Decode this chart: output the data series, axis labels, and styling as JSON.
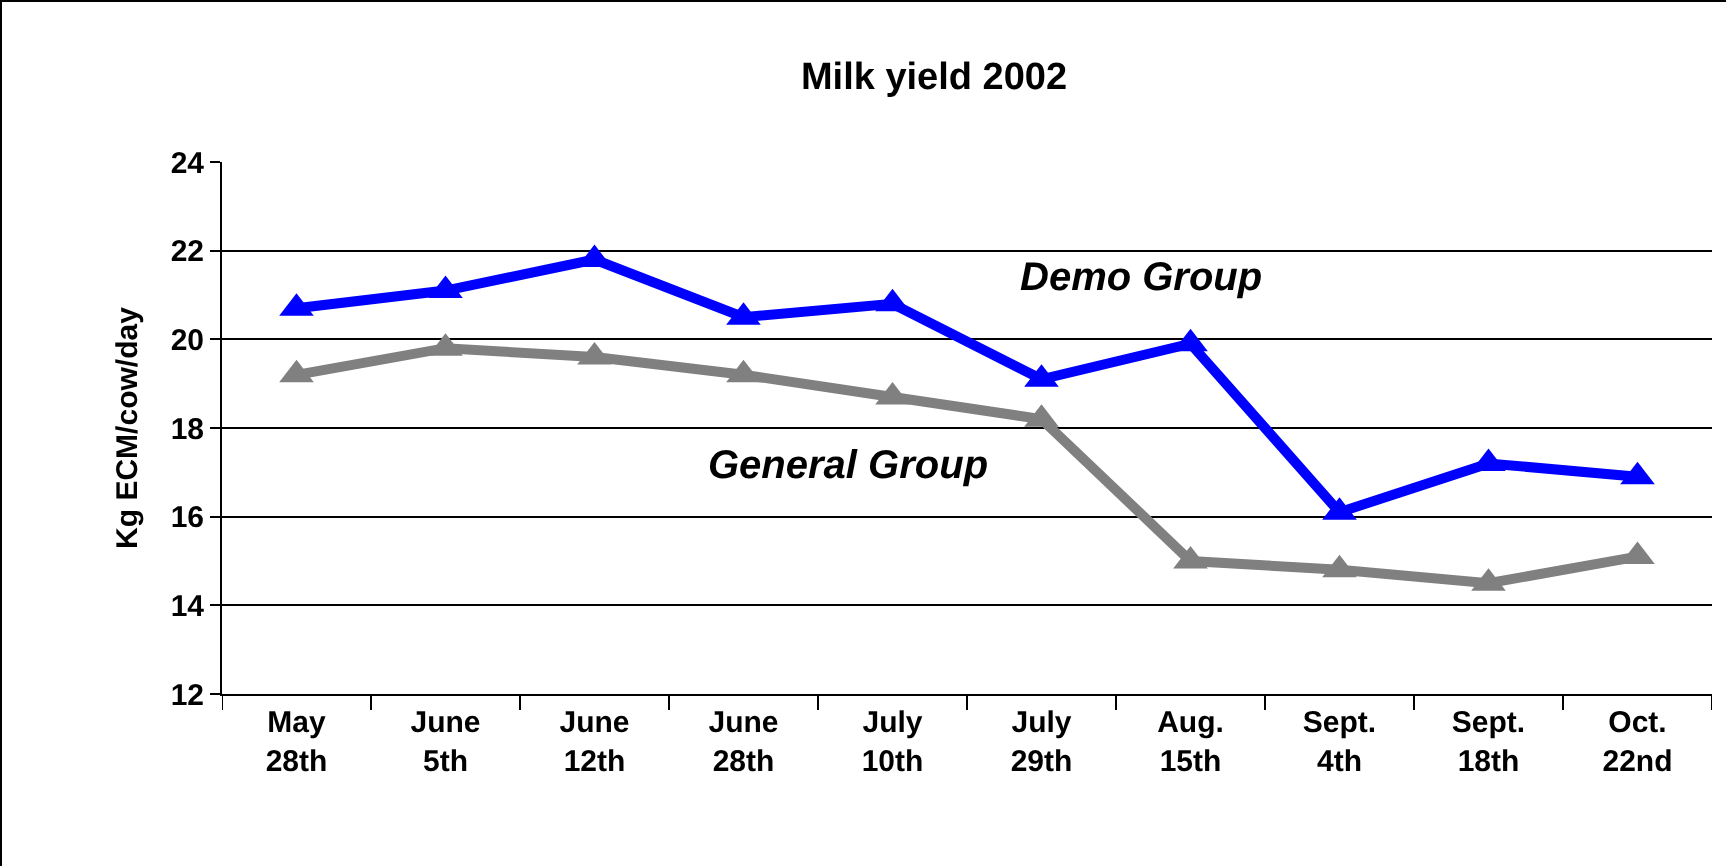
{
  "chart_data": {
    "type": "line",
    "title": "Milk yield 2002",
    "ylabel": "Kg ECM/cow/day",
    "categories": [
      "May\n28th",
      "June\n5th",
      "June\n12th",
      "June\n28th",
      "July\n10th",
      "July\n29th",
      "Aug.\n15th",
      "Sept.\n4th",
      "Sept.\n18th",
      "Oct.\n22nd"
    ],
    "series": [
      {
        "name": "Demo Group",
        "color": "#0000ff",
        "values": [
          20.7,
          21.1,
          21.8,
          20.5,
          20.8,
          19.1,
          19.9,
          16.1,
          17.2,
          16.9
        ]
      },
      {
        "name": "General Group",
        "color": "#808080",
        "values": [
          19.2,
          19.8,
          19.6,
          19.2,
          18.7,
          18.2,
          15.0,
          14.8,
          14.5,
          15.1
        ]
      }
    ],
    "ylim": [
      12,
      24
    ],
    "yticks": [
      12,
      14,
      16,
      18,
      20,
      22,
      24
    ],
    "grid": "y",
    "legend": false,
    "marker": "triangle",
    "line_style": "solid"
  }
}
